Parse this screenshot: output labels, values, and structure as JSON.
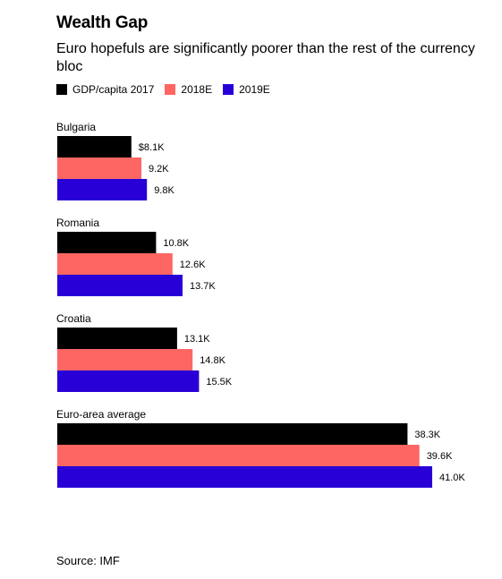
{
  "title": "Wealth Gap",
  "subtitle": "Euro hopefuls are significantly poorer than the rest of the currency bloc",
  "source": "Source: IMF",
  "colors": {
    "gdp2017": "#000000",
    "e2018": "#fd6663",
    "e2019": "#2800d7"
  },
  "chart_data": {
    "type": "bar",
    "orientation": "horizontal",
    "title": "Wealth Gap",
    "subtitle": "Euro hopefuls are significantly poorer than the rest of the currency bloc",
    "categories": [
      "Bulgaria",
      "Romania",
      "Croatia",
      "Euro-area average"
    ],
    "series": [
      {
        "name": "GDP/capita 2017",
        "color": "#000000",
        "values": [
          8.1,
          10.8,
          13.1,
          38.3
        ],
        "labels": [
          "$8.1K",
          "10.8K",
          "13.1K",
          "38.3K"
        ]
      },
      {
        "name": "2018E",
        "color": "#fd6663",
        "values": [
          9.2,
          12.6,
          14.8,
          39.6
        ],
        "labels": [
          "9.2K",
          "12.6K",
          "14.8K",
          "39.6K"
        ]
      },
      {
        "name": "2019E",
        "color": "#2800d7",
        "values": [
          9.8,
          13.7,
          15.5,
          41.0
        ],
        "labels": [
          "9.8K",
          "13.7K",
          "15.5K",
          "41.0K"
        ]
      }
    ],
    "unit": "thousand USD",
    "xlim": [
      0,
      41.0
    ],
    "grid": false,
    "legend": "top-left"
  }
}
